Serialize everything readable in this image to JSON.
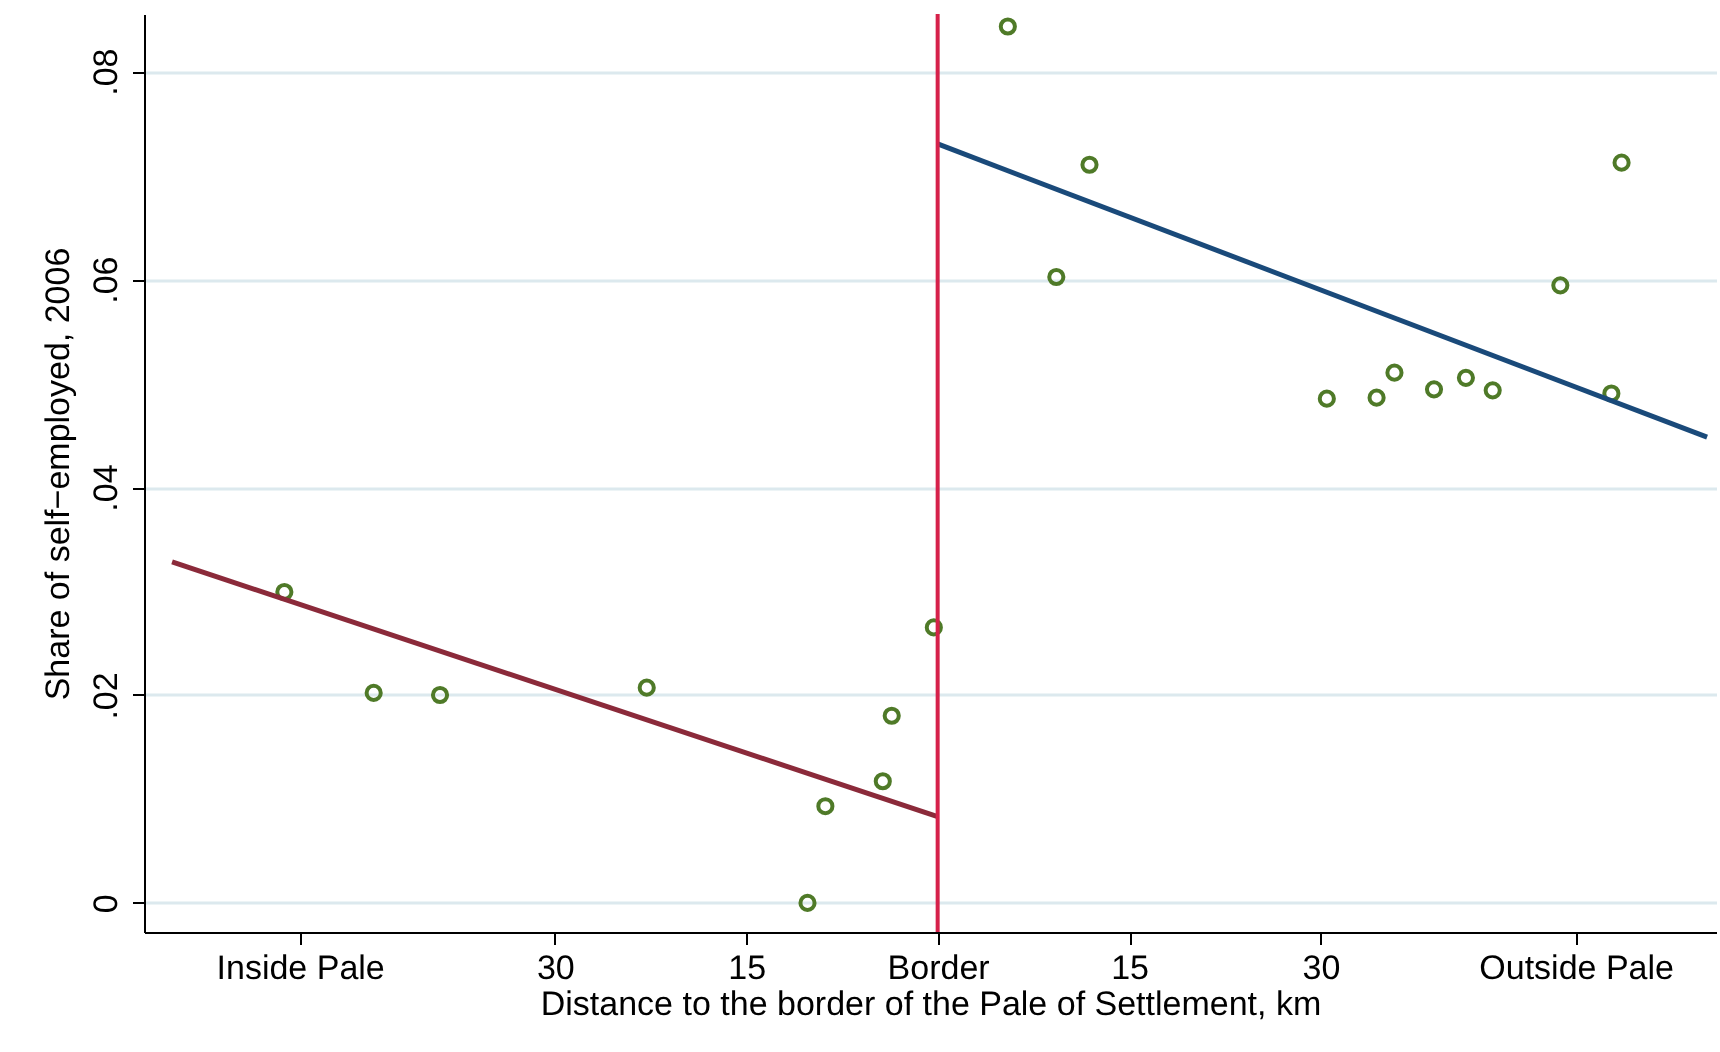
{
  "chart_data": {
    "type": "scatter",
    "xlabel": "Distance to the border of the Pale of Settlement, km",
    "ylabel": "Share of self−employed, 2006",
    "xlim": [
      -62.2,
      61
    ],
    "ylim": [
      -0.0028,
      0.0855
    ],
    "xticks": [
      {
        "value": -50,
        "label": "Inside Pale"
      },
      {
        "value": -30,
        "label": "30"
      },
      {
        "value": -15,
        "label": "15"
      },
      {
        "value": 0,
        "label": "Border"
      },
      {
        "value": 15,
        "label": "15"
      },
      {
        "value": 30,
        "label": "30"
      },
      {
        "value": 50,
        "label": "Outside Pale"
      }
    ],
    "yticks": [
      {
        "value": 0,
        "label": "0"
      },
      {
        "value": 0.02,
        "label": ".02"
      },
      {
        "value": 0.04,
        "label": ".04"
      },
      {
        "value": 0.06,
        "label": ".06"
      },
      {
        "value": 0.08,
        "label": ".08"
      }
    ],
    "grid": "y",
    "marker": "circle",
    "series": [
      {
        "color": "#4f7a28",
        "x": [
          -51.2,
          -44.2,
          -39,
          -22.8,
          -10.2,
          -8.8,
          -4.3,
          -3.6,
          -0.3,
          5.5,
          9.3,
          11.9,
          30.5,
          34.4,
          35.8,
          38.9,
          41.4,
          43.5,
          48.8,
          52.8,
          53.6
        ],
        "values": [
          0.0299,
          0.0202,
          0.02,
          0.0207,
          0,
          0.0093,
          0.0117,
          0.018,
          0.0265,
          0.0843,
          0.0602,
          0.071,
          0.0485,
          0.0486,
          0.051,
          0.0494,
          0.0505,
          0.0493,
          0.0594,
          0.049,
          0.0712
        ]
      },
      {
        "type": "line",
        "marker": "none",
        "color": "#8b2a3a",
        "x": [
          -60,
          0
        ],
        "values": [
          0.0328,
          0.0083
        ]
      },
      {
        "type": "line",
        "marker": "none",
        "color": "#1a4a7a",
        "x": [
          0,
          60.3
        ],
        "values": [
          0.073,
          0.0448
        ]
      }
    ],
    "ref_lines": [
      {
        "axis": "x",
        "value": 0,
        "color": "#d6214a"
      }
    ]
  }
}
